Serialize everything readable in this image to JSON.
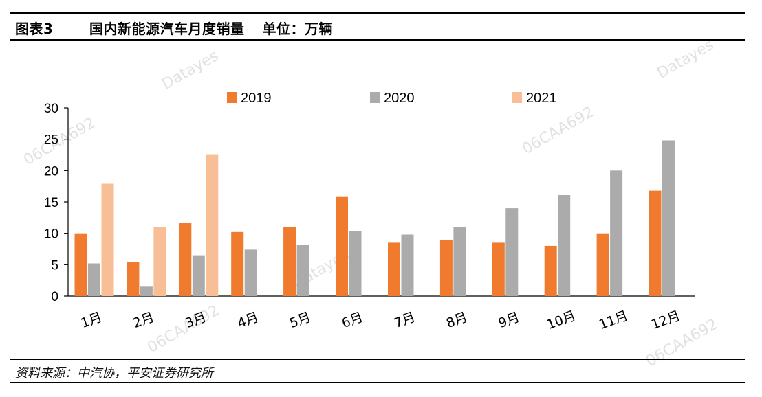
{
  "header": {
    "figure_label": "图表3",
    "title": "国内新能源汽车月度销量",
    "unit": "单位：万辆"
  },
  "footer": {
    "source": "资料来源：中汽协，平安证券研究所"
  },
  "watermarks": [
    "Datayes",
    "06CAA692"
  ],
  "chart_data": {
    "type": "bar",
    "categories": [
      "1月",
      "2月",
      "3月",
      "4月",
      "5月",
      "6月",
      "7月",
      "8月",
      "9月",
      "10月",
      "11月",
      "12月"
    ],
    "series": [
      {
        "name": "2019",
        "color": "#F07A2E",
        "values": [
          10.0,
          5.4,
          11.7,
          10.2,
          11.0,
          15.8,
          8.5,
          8.9,
          8.5,
          8.0,
          10.0,
          16.8
        ]
      },
      {
        "name": "2020",
        "color": "#ABABAB",
        "values": [
          5.2,
          1.5,
          6.5,
          7.4,
          8.2,
          10.4,
          9.8,
          11.0,
          14.0,
          16.1,
          20.0,
          24.8
        ]
      },
      {
        "name": "2021",
        "color": "#F8BE96",
        "values": [
          17.9,
          11.0,
          22.6,
          null,
          null,
          null,
          null,
          null,
          null,
          null,
          null,
          null
        ]
      }
    ],
    "yticks": [
      0,
      5,
      10,
      15,
      20,
      25,
      30
    ],
    "ylim": [
      0,
      30
    ],
    "legend_position": "top",
    "grid": false
  }
}
